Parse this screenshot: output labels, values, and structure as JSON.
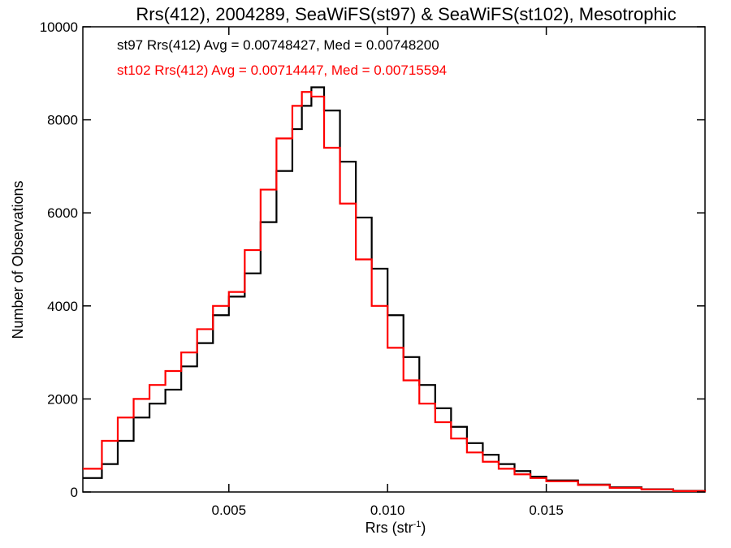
{
  "chart_data": {
    "type": "line",
    "title": "Rrs(412), 2004289, SeaWiFS(st97) & SeaWiFS(st102), Mesotrophic",
    "xlabel": "Rrs (str",
    "xlabel_sup": "-1",
    "xlabel_suffix": ")",
    "ylabel": "Number of Observations",
    "xlim": [
      0.0004,
      0.02
    ],
    "ylim": [
      0,
      10000
    ],
    "x_ticks": [
      0.005,
      0.01,
      0.015
    ],
    "x_tick_labels": [
      "0.005",
      "0.010",
      "0.015"
    ],
    "y_ticks": [
      0,
      2000,
      4000,
      6000,
      8000,
      10000
    ],
    "y_tick_labels": [
      "0",
      "2000",
      "4000",
      "6000",
      "8000",
      "10000"
    ],
    "grid": false,
    "annotations": [
      {
        "text": "st97 Rrs(412) Avg = 0.00748427, Med = 0.00748200",
        "color": "#000000"
      },
      {
        "text": "st102 Rrs(412) Avg = 0.00714447, Med = 0.00715594",
        "color": "#ff0000"
      }
    ],
    "series": [
      {
        "color": "#000000",
        "x": [
          0.0004,
          0.001,
          0.0015,
          0.002,
          0.0025,
          0.003,
          0.0035,
          0.004,
          0.0045,
          0.005,
          0.0055,
          0.006,
          0.0065,
          0.007,
          0.0073,
          0.0076,
          0.008,
          0.0085,
          0.009,
          0.0095,
          0.01,
          0.0105,
          0.011,
          0.0115,
          0.012,
          0.0125,
          0.013,
          0.0135,
          0.014,
          0.0145,
          0.015,
          0.016,
          0.017,
          0.018,
          0.019,
          0.02
        ],
        "y": [
          300,
          600,
          1100,
          1600,
          1900,
          2200,
          2700,
          3200,
          3800,
          4200,
          4700,
          5800,
          6900,
          7800,
          8300,
          8700,
          8200,
          7100,
          5900,
          4800,
          3800,
          2900,
          2300,
          1800,
          1400,
          1050,
          800,
          600,
          450,
          330,
          250,
          160,
          100,
          60,
          25,
          10
        ]
      },
      {
        "color": "#ff0000",
        "x": [
          0.0004,
          0.001,
          0.0015,
          0.002,
          0.0025,
          0.003,
          0.0035,
          0.004,
          0.0045,
          0.005,
          0.0055,
          0.006,
          0.0065,
          0.007,
          0.0073,
          0.0076,
          0.008,
          0.0085,
          0.009,
          0.0095,
          0.01,
          0.0105,
          0.011,
          0.0115,
          0.012,
          0.0125,
          0.013,
          0.0135,
          0.014,
          0.0145,
          0.015,
          0.016,
          0.017,
          0.018,
          0.019,
          0.02
        ],
        "y": [
          500,
          1100,
          1600,
          2000,
          2300,
          2600,
          3000,
          3500,
          4000,
          4300,
          5200,
          6500,
          7600,
          8300,
          8600,
          8500,
          7400,
          6200,
          5000,
          4000,
          3100,
          2400,
          1900,
          1500,
          1150,
          850,
          650,
          500,
          380,
          300,
          230,
          150,
          90,
          55,
          20,
          5
        ]
      }
    ]
  }
}
